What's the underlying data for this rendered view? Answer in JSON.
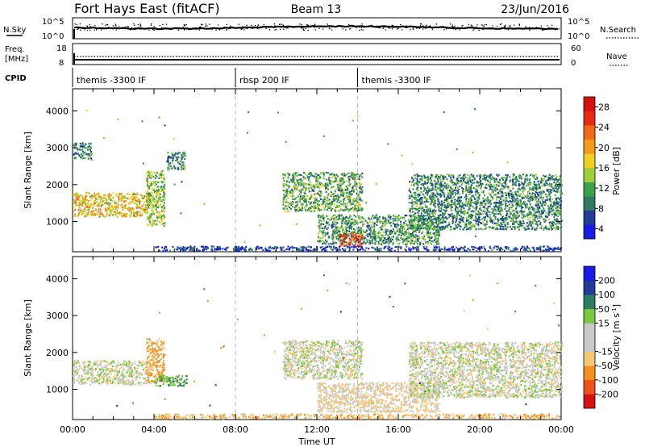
{
  "header": {
    "station": "Fort Hays East (fitACF)",
    "beam": "Beam 13",
    "date": "23/Jun/2016"
  },
  "strips": {
    "nsky_label": "N.Sky",
    "nsky_ticks": [
      "10^5",
      "10^0"
    ],
    "nsearch_label": "N.Search",
    "freq_label": "Freq.",
    "freq_unit": "[MHz]",
    "freq_ticks": [
      "18",
      "8"
    ],
    "nave_label": "Nave",
    "nave_ticks": [
      "60",
      "0"
    ],
    "cpid_label": "CPID",
    "cpid_segments": [
      {
        "label": "themis -3300 IF",
        "start_hour": 0,
        "end_hour": 8
      },
      {
        "label": "rbsp 200 IF",
        "start_hour": 8,
        "end_hour": 14
      },
      {
        "label": "themis -3300 IF",
        "start_hour": 14,
        "end_hour": 24
      }
    ]
  },
  "colors": {
    "power_scale": [
      "#1a1ae6",
      "#1f3d99",
      "#2f7a62",
      "#3aa04a",
      "#9fcf3a",
      "#f0d020",
      "#f39a1a",
      "#f06a18",
      "#e62a18",
      "#d41010"
    ],
    "velocity_scale": [
      "#d41010",
      "#f0501a",
      "#f5901f",
      "#f5c878",
      "#c8c8c8",
      "#c8c8c8",
      "#79c840",
      "#2f7a62",
      "#1f3d99",
      "#1a1ae6"
    ]
  },
  "chart_data": [
    {
      "type": "heatmap",
      "title": "Power",
      "xlabel": "Time UT",
      "ylabel": "Slant Range [km]",
      "colorbar_label": "Power [dB]",
      "colorbar_ticks": [
        "28",
        "24",
        "20",
        "16",
        "12",
        "8",
        "4"
      ],
      "xlim": [
        0,
        24
      ],
      "ylim": [
        180,
        4600
      ],
      "x_ticks": [
        "00:00",
        "04:00",
        "08:00",
        "12:00",
        "16:00",
        "20:00",
        "00:00"
      ],
      "y_ticks": [
        "1000",
        "2000",
        "3000",
        "4000"
      ],
      "vlines_hour": [
        8,
        14
      ],
      "regions": [
        {
          "name": "early-band",
          "x": [
            0,
            3.8
          ],
          "y": [
            1150,
            1800
          ],
          "value": 18
        },
        {
          "name": "early-high",
          "x": [
            0,
            0.9
          ],
          "y": [
            2700,
            3150
          ],
          "value": 9
        },
        {
          "name": "near-04h",
          "x": [
            3.6,
            4.5
          ],
          "y": [
            900,
            2400
          ],
          "value": 14
        },
        {
          "name": "around-05h",
          "x": [
            4.6,
            5.5
          ],
          "y": [
            2400,
            2900
          ],
          "value": 10
        },
        {
          "name": "afternoon-arc",
          "x": [
            10.3,
            14.2
          ],
          "y": [
            1300,
            2350
          ],
          "value": 12
        },
        {
          "name": "descending-band",
          "x": [
            12,
            18
          ],
          "y": [
            400,
            1200
          ],
          "value": 11
        },
        {
          "name": "red-streak",
          "x": [
            13.1,
            14.2
          ],
          "y": [
            350,
            700
          ],
          "value": 26
        },
        {
          "name": "late-arc",
          "x": [
            16.5,
            24
          ],
          "y": [
            800,
            2300
          ],
          "value": 10
        },
        {
          "name": "ground-scatter",
          "x": [
            4,
            24
          ],
          "y": [
            200,
            350
          ],
          "value": 6
        }
      ]
    },
    {
      "type": "heatmap",
      "title": "Velocity",
      "xlabel": "Time UT",
      "ylabel": "Slant Range [km]",
      "colorbar_label": "Velocity [m s^-1]",
      "colorbar_ticks": [
        "200",
        "100",
        "50",
        "15",
        "-15",
        "-50",
        "-100",
        "-200"
      ],
      "xlim": [
        0,
        24
      ],
      "ylim": [
        180,
        4600
      ],
      "x_ticks": [
        "00:00",
        "04:00",
        "08:00",
        "12:00",
        "16:00",
        "20:00",
        "00:00"
      ],
      "y_ticks": [
        "1000",
        "2000",
        "3000",
        "4000"
      ],
      "vlines_hour": [
        8,
        14
      ],
      "regions": [
        {
          "name": "early-band",
          "x": [
            0,
            3.8
          ],
          "y": [
            1150,
            1800
          ],
          "value": 0
        },
        {
          "name": "near-04h",
          "x": [
            3.6,
            4.5
          ],
          "y": [
            1200,
            2400
          ],
          "value": -60
        },
        {
          "name": "green-patch",
          "x": [
            4,
            5.6
          ],
          "y": [
            1100,
            1400
          ],
          "value": 40
        },
        {
          "name": "afternoon-arc",
          "x": [
            10.3,
            14.2
          ],
          "y": [
            1300,
            2350
          ],
          "value": 0
        },
        {
          "name": "descending-band",
          "x": [
            12,
            18
          ],
          "y": [
            400,
            1200
          ],
          "value": -20
        },
        {
          "name": "late-arc",
          "x": [
            16.5,
            24
          ],
          "y": [
            800,
            2300
          ],
          "value": 0
        },
        {
          "name": "ground-scatter",
          "x": [
            4,
            24
          ],
          "y": [
            200,
            350
          ],
          "value": -40
        }
      ]
    }
  ]
}
